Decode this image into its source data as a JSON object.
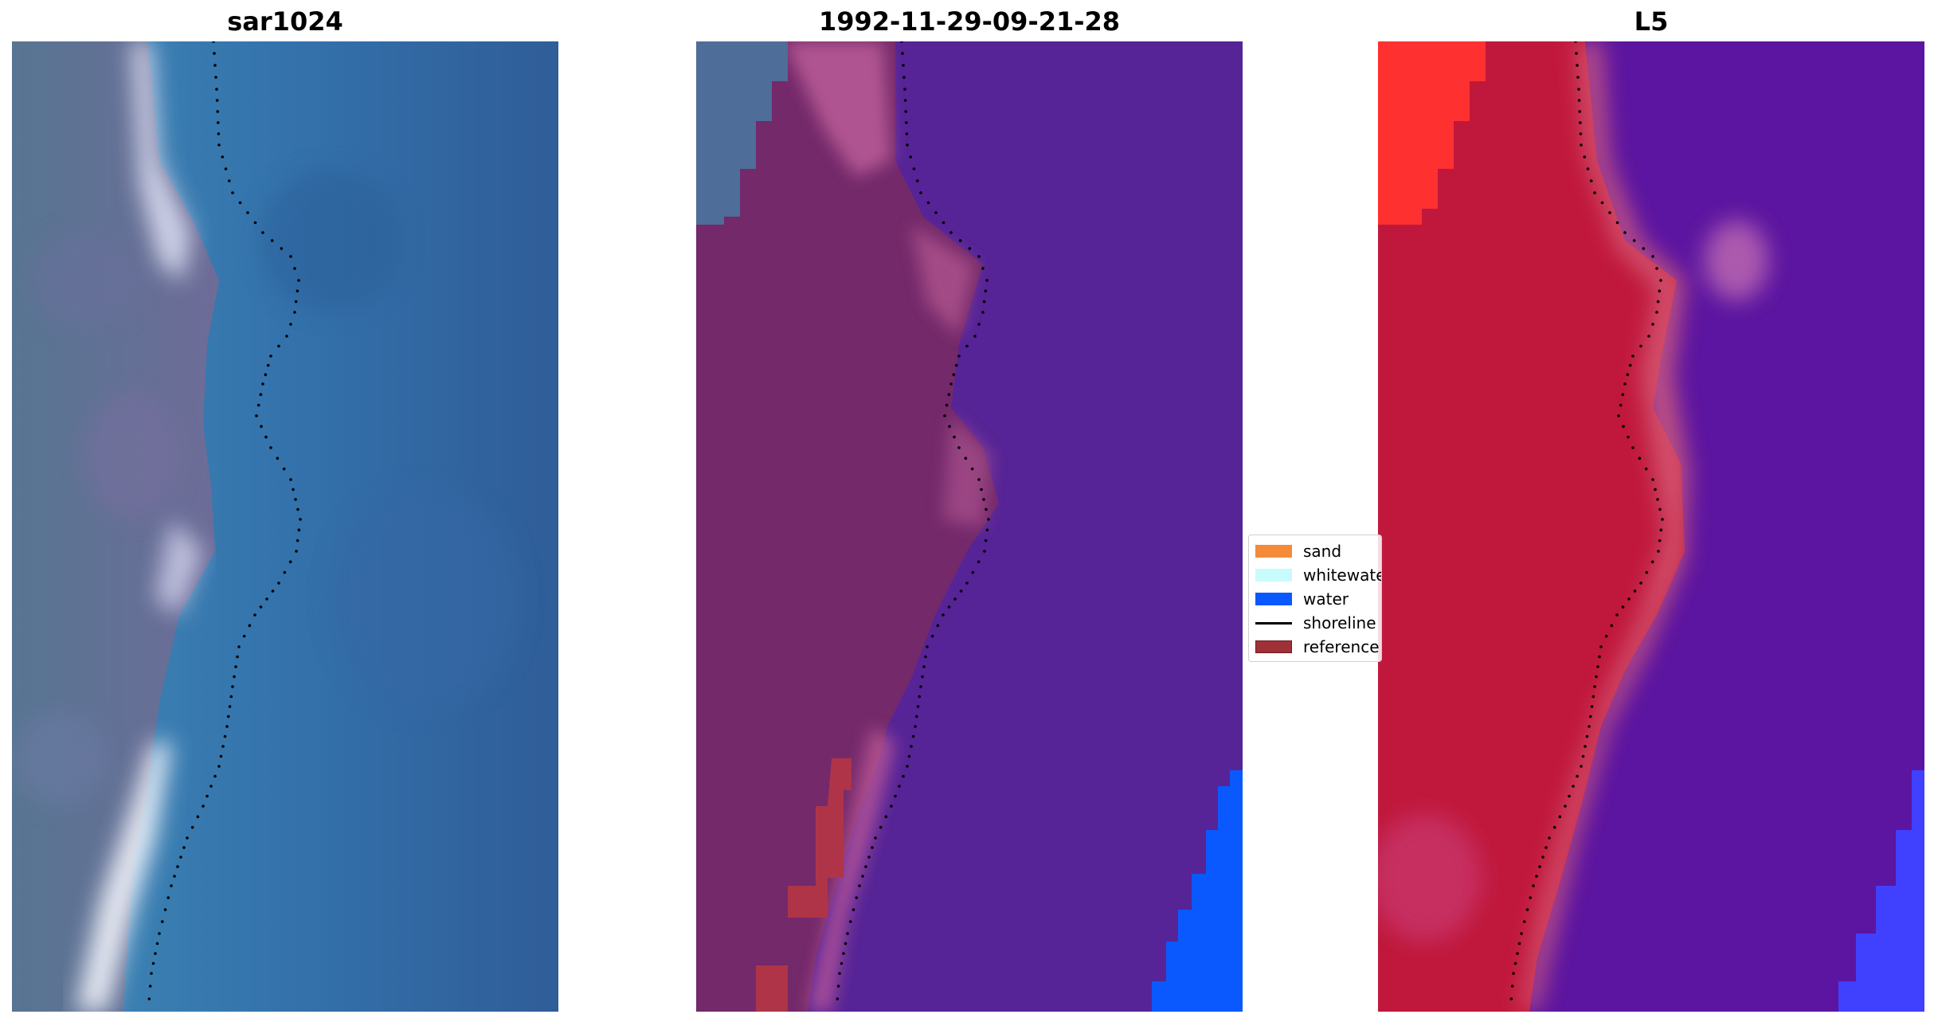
{
  "titles": {
    "left": "sar1024",
    "center": "1992-11-29-09-21-28",
    "right": "L5"
  },
  "legend": {
    "items": [
      {
        "label": "sand",
        "color": "#f58a3a",
        "kind": "patch"
      },
      {
        "label": "whitewater",
        "color": "#c8fbfb",
        "kind": "patch"
      },
      {
        "label": "water",
        "color": "#0a59ff",
        "kind": "patch"
      },
      {
        "label": "shoreline",
        "color": "#000000",
        "kind": "line"
      },
      {
        "label": "reference",
        "color": "#a03038",
        "kind": "patch"
      }
    ]
  },
  "colors": {
    "sar_land": "#5f6f94",
    "sar_water": "#3872a8",
    "sar_foam": "#e8f0f8",
    "class_land": "#74296a",
    "class_water": "#562496",
    "class_water_blue": "#0a59ff",
    "class_reference": "#b03448",
    "l5_land": "#c0183c",
    "l5_water": "#5c15a0",
    "l5_sand": "#ff3030",
    "l5_water_blue": "#4040ff",
    "shoreline": "#000000"
  }
}
